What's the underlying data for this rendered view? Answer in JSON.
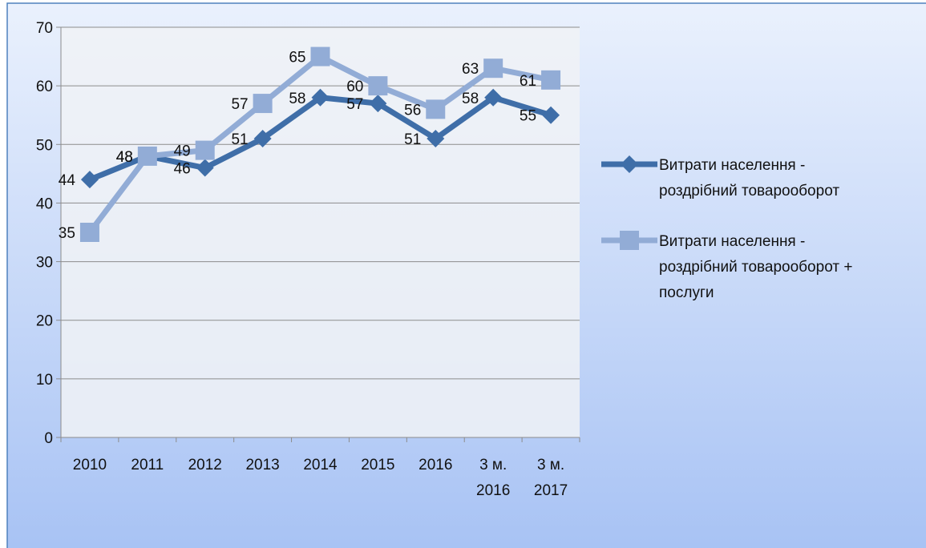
{
  "chart_data": {
    "type": "line",
    "categories": [
      "2010",
      "2011",
      "2012",
      "2013",
      "2014",
      "2015",
      "2016",
      "3 м. 2016",
      "3 м. 2017"
    ],
    "series": [
      {
        "name": "Витрати населення - роздрібний товарооборот",
        "color": "#3f6ea8",
        "marker": "diamond",
        "values": [
          44,
          48,
          46,
          51,
          58,
          57,
          51,
          58,
          55
        ]
      },
      {
        "name": "Витрати населення - роздрібний товарооборот + послуги",
        "color": "#92acd6",
        "marker": "square",
        "values": [
          35,
          48,
          49,
          57,
          65,
          60,
          56,
          63,
          61
        ]
      }
    ],
    "ylim": [
      0,
      70
    ],
    "yticks": [
      0,
      10,
      20,
      30,
      40,
      50,
      60,
      70
    ],
    "grid": true,
    "legend": "right"
  }
}
